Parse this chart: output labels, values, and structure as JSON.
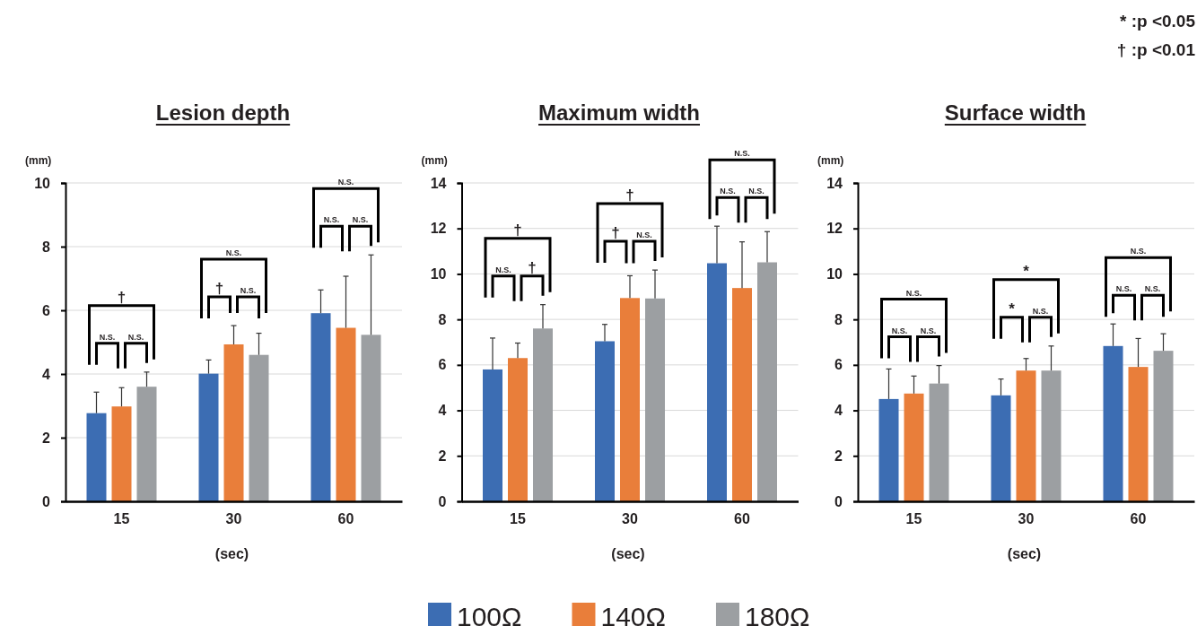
{
  "chart_data": [
    {
      "type": "bar",
      "title": "Lesion depth",
      "xlabel": "(sec)",
      "ylabel": "(mm)",
      "categories": [
        "15",
        "30",
        "60"
      ],
      "ylim": [
        0,
        10
      ],
      "yticks": [
        0,
        2,
        4,
        6,
        8,
        10
      ],
      "grid": "y",
      "legend": false,
      "series": [
        {
          "color": "#3c6db3",
          "values": [
            2.77,
            4.01,
            5.91
          ],
          "errors": [
            0.66,
            0.43,
            0.73
          ]
        },
        {
          "color": "#e97e3a",
          "values": [
            2.98,
            4.93,
            5.45
          ],
          "errors": [
            0.59,
            0.59,
            1.62
          ]
        },
        {
          "color": "#9c9fa2",
          "values": [
            3.6,
            4.6,
            5.23
          ],
          "errors": [
            0.46,
            0.68,
            2.51
          ]
        }
      ],
      "annotations": [
        "†",
        "N.S.",
        "N.S.",
        "N.S.",
        "†",
        "N.S.",
        "N.S.",
        "N.S.",
        "N.S."
      ]
    },
    {
      "type": "bar",
      "title": "Maximum width",
      "xlabel": "(sec)",
      "ylabel": "(mm)",
      "categories": [
        "15",
        "30",
        "60"
      ],
      "ylim": [
        0,
        14
      ],
      "yticks": [
        0,
        2,
        4,
        6,
        8,
        10,
        12,
        14
      ],
      "grid": "y",
      "legend": "bottom",
      "series": [
        {
          "name": "100Ω",
          "color": "#3c6db3",
          "values": [
            5.8,
            7.04,
            10.47
          ],
          "errors": [
            1.38,
            0.74,
            1.63
          ]
        },
        {
          "name": "140Ω",
          "color": "#e97e3a",
          "values": [
            6.3,
            8.94,
            9.38
          ],
          "errors": [
            0.66,
            0.98,
            2.03
          ]
        },
        {
          "name": "180Ω",
          "color": "#9c9fa2",
          "values": [
            7.6,
            8.92,
            10.51
          ],
          "errors": [
            1.05,
            1.25,
            1.35
          ]
        }
      ],
      "annotations": [
        "†",
        "N.S.",
        "†",
        "†",
        "†",
        "N.S.",
        "N.S.",
        "N.S.",
        "N.S."
      ]
    },
    {
      "type": "bar",
      "title": "Surface width",
      "xlabel": "(sec)",
      "ylabel": "(mm)",
      "categories": [
        "15",
        "30",
        "60"
      ],
      "ylim": [
        0,
        14
      ],
      "yticks": [
        0,
        2,
        4,
        6,
        8,
        10,
        12,
        14
      ],
      "grid": "y",
      "legend": false,
      "series": [
        {
          "color": "#3c6db3",
          "values": [
            4.5,
            4.66,
            6.83
          ],
          "errors": [
            1.32,
            0.72,
            0.97
          ]
        },
        {
          "color": "#e97e3a",
          "values": [
            4.74,
            5.75,
            5.91
          ],
          "errors": [
            0.77,
            0.53,
            1.25
          ]
        },
        {
          "color": "#9c9fa2",
          "values": [
            5.18,
            5.75,
            6.62
          ],
          "errors": [
            0.79,
            1.08,
            0.75
          ]
        }
      ],
      "annotations": [
        "N.S.",
        "N.S.",
        "N.S.",
        "*",
        "*",
        "N.S.",
        "N.S.",
        "N.S.",
        "N.S.",
        "* :p <0.05",
        "† :p <0.01"
      ]
    }
  ]
}
